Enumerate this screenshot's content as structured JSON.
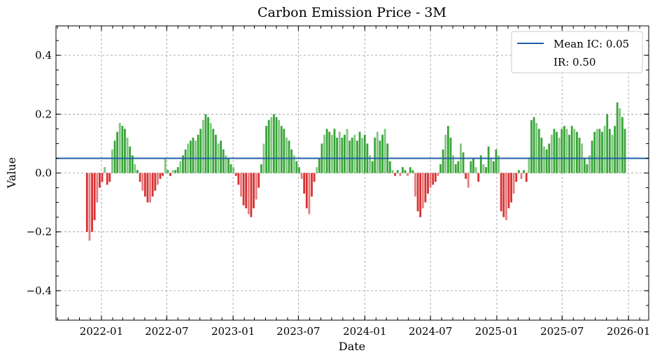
{
  "chart_data": {
    "type": "bar",
    "title": "Carbon Emission Price - 3M",
    "xlabel": "Date",
    "ylabel": "Value",
    "ylim": [
      -0.5,
      0.5
    ],
    "xlim": [
      "2021-08-28",
      "2026-02-26"
    ],
    "grid": true,
    "yticks": [
      0.4,
      0.2,
      0.0,
      -0.2,
      -0.4
    ],
    "ytick_labels": [
      "0.4",
      "0.2",
      "0.0",
      "−0.2",
      "−0.4"
    ],
    "xticks": [
      "2022-01-01",
      "2022-07-01",
      "2023-01-01",
      "2023-07-01",
      "2024-01-01",
      "2024-07-01",
      "2025-01-01",
      "2025-07-01",
      "2026-01-01"
    ],
    "xtick_labels": [
      "2022-01",
      "2022-07",
      "2023-01",
      "2023-07",
      "2024-01",
      "2024-07",
      "2025-01",
      "2025-07",
      "2026-01"
    ],
    "positive_color": "#2ca02c",
    "negative_color": "#d62728",
    "mean_line": {
      "value": 0.05,
      "color": "#1f5fa8"
    },
    "legend": {
      "placement": "top-right",
      "entries": [
        "Mean IC: 0.05",
        "IR: 0.50"
      ]
    },
    "series_start": "2021-11-22",
    "step_days": 7,
    "values": [
      -0.2,
      -0.23,
      -0.2,
      -0.16,
      -0.1,
      -0.05,
      -0.03,
      0.02,
      -0.04,
      -0.03,
      0.08,
      0.11,
      0.14,
      0.17,
      0.16,
      0.15,
      0.12,
      0.09,
      0.06,
      0.03,
      0.01,
      -0.03,
      -0.06,
      -0.08,
      -0.1,
      -0.1,
      -0.08,
      -0.06,
      -0.04,
      -0.02,
      -0.01,
      0.05,
      0.01,
      -0.01,
      0.01,
      0.01,
      0.02,
      0.04,
      0.06,
      0.08,
      0.1,
      0.11,
      0.12,
      0.11,
      0.13,
      0.15,
      0.18,
      0.2,
      0.19,
      0.17,
      0.15,
      0.13,
      0.1,
      0.11,
      0.08,
      0.06,
      0.05,
      0.03,
      0.02,
      -0.01,
      -0.04,
      -0.08,
      -0.11,
      -0.12,
      -0.14,
      -0.15,
      -0.12,
      -0.09,
      -0.05,
      0.03,
      0.1,
      0.16,
      0.18,
      0.19,
      0.2,
      0.19,
      0.18,
      0.16,
      0.15,
      0.12,
      0.11,
      0.08,
      0.06,
      0.04,
      0.02,
      -0.02,
      -0.07,
      -0.12,
      -0.14,
      -0.08,
      -0.03,
      0.02,
      0.05,
      0.1,
      0.13,
      0.15,
      0.14,
      0.13,
      0.15,
      0.12,
      0.14,
      0.12,
      0.13,
      0.15,
      0.11,
      0.12,
      0.13,
      0.11,
      0.14,
      0.12,
      0.13,
      0.1,
      0.06,
      0.04,
      0.12,
      0.14,
      0.11,
      0.13,
      0.15,
      0.1,
      0.04,
      0.01,
      -0.01,
      0.01,
      -0.01,
      0.02,
      0.01,
      -0.01,
      0.02,
      0.01,
      -0.08,
      -0.13,
      -0.15,
      -0.12,
      -0.1,
      -0.07,
      -0.05,
      -0.04,
      -0.03,
      -0.01,
      0.03,
      0.08,
      0.13,
      0.16,
      0.12,
      0.06,
      0.03,
      0.04,
      0.1,
      0.07,
      -0.02,
      -0.05,
      0.04,
      0.05,
      0.02,
      -0.03,
      0.06,
      0.03,
      0.02,
      0.09,
      0.05,
      0.04,
      0.08,
      0.06,
      -0.13,
      -0.15,
      -0.16,
      -0.12,
      -0.1,
      -0.07,
      -0.03,
      0.01,
      -0.02,
      0.01,
      -0.03,
      0.05,
      0.18,
      0.19,
      0.17,
      0.15,
      0.12,
      0.09,
      0.08,
      0.1,
      0.13,
      0.15,
      0.14,
      0.12,
      0.15,
      0.16,
      0.15,
      0.13,
      0.16,
      0.15,
      0.14,
      0.12,
      0.1,
      0.05,
      0.03,
      0.06,
      0.11,
      0.14,
      0.15,
      0.15,
      0.14,
      0.16,
      0.2,
      0.15,
      0.13,
      0.16,
      0.24,
      0.22,
      0.19,
      0.15
    ]
  }
}
